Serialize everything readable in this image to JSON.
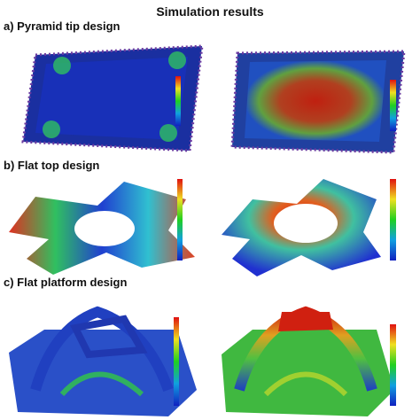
{
  "header": {
    "title": "Simulation results"
  },
  "panels": [
    {
      "label": "a) Pyramid tip design"
    },
    {
      "label": "b) Flat top design"
    },
    {
      "label": "c) Flat platform design"
    }
  ]
}
